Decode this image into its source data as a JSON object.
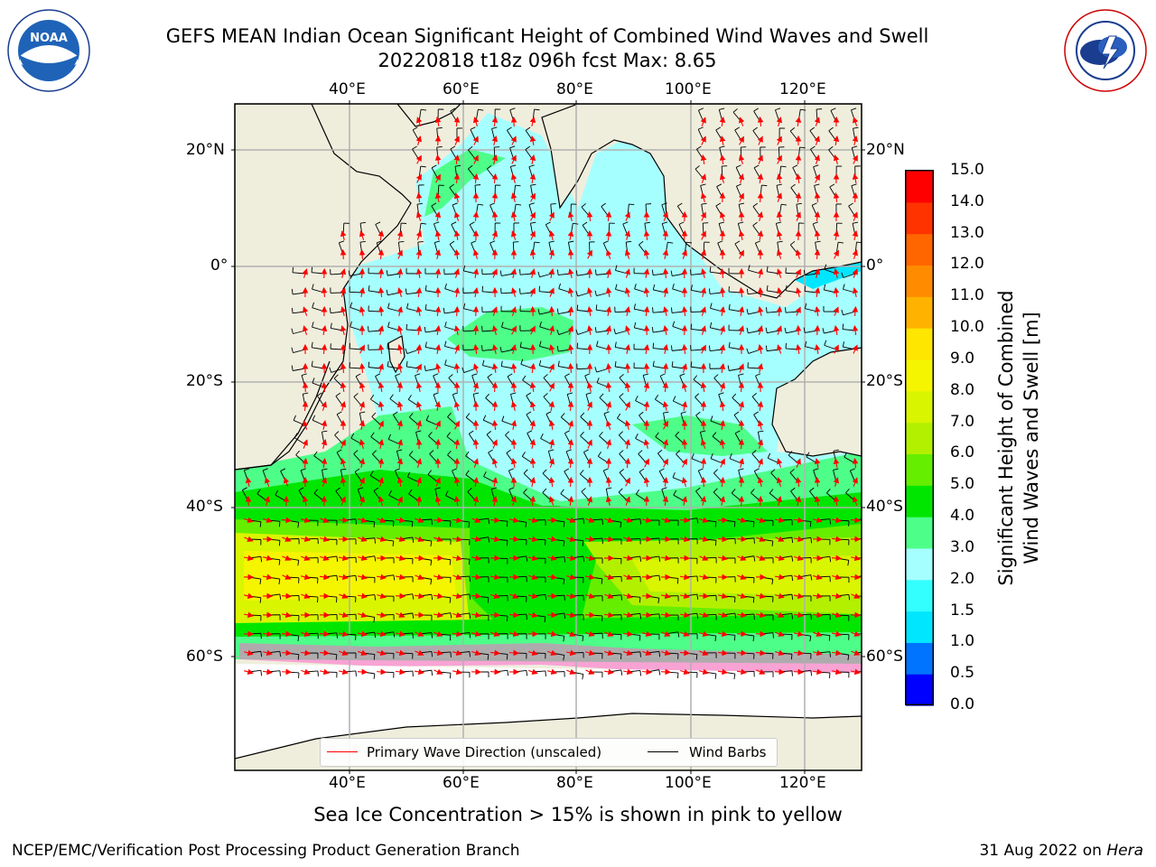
{
  "title": {
    "line1": "GEFS MEAN Indian Ocean Significant Height of Combined Wind Waves and Swell",
    "line2": "20220818 t18z 096h fcst   Max: 8.65"
  },
  "map": {
    "top_lon_labels": [
      "40°E",
      "60°E",
      "80°E",
      "100°E",
      "120°E"
    ],
    "bottom_lon_labels": [
      "40°E",
      "60°E",
      "80°E",
      "100°E",
      "120°E"
    ],
    "left_lat_labels": [
      "20°N",
      "0°",
      "20°S",
      "40°S",
      "60°S"
    ],
    "right_lat_labels": [
      "20°N",
      "0°",
      "20°S",
      "40°S",
      "60°S"
    ]
  },
  "colorbar": {
    "label_line1": "Significant Height of Combined",
    "label_line2": "Wind Waves and Swell [m]",
    "ticks": [
      "15.0",
      "14.0",
      "13.0",
      "12.0",
      "11.0",
      "10.0",
      "9.0",
      "8.0",
      "7.0",
      "6.0",
      "5.0",
      "4.0",
      "3.0",
      "2.0",
      "1.5",
      "1.0",
      "0.5",
      "0.0"
    ],
    "colors": [
      "#0000ff",
      "#0073ff",
      "#00e6ff",
      "#33ffff",
      "#a6ffff",
      "#4dff88",
      "#00e600",
      "#66ee00",
      "#b3f000",
      "#d9f500",
      "#f5f500",
      "#ffe600",
      "#ffb300",
      "#ff8c00",
      "#ff6600",
      "#ff3300",
      "#ff0000"
    ]
  },
  "legend": {
    "wave_label": "Primary Wave Direction (unscaled)",
    "wind_label": "Wind Barbs",
    "wave_color": "#ff0000",
    "wind_color": "#000000"
  },
  "caption": "Sea Ice Concentration > 15% is shown in pink to yellow",
  "footer": {
    "left": "NCEP/EMC/Verification Post Processing Product Generation Branch",
    "right_prefix": "31 Aug 2022 on ",
    "right_host": "Hera"
  },
  "logos": {
    "left_icon": "noaa-logo-icon",
    "left_text": "NOAA",
    "right_icon": "nws-logo-icon"
  }
}
